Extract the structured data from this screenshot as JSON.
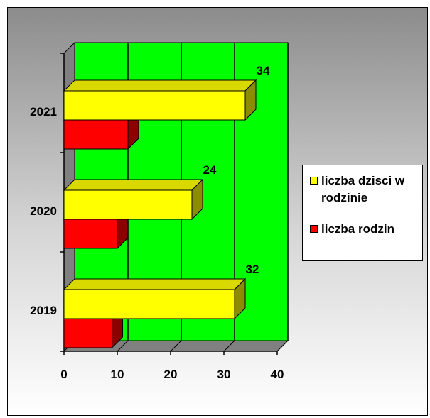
{
  "chart_data": {
    "type": "bar",
    "orientation": "horizontal",
    "categories": [
      "2019",
      "2020",
      "2021"
    ],
    "series": [
      {
        "name": "liczba dzisci w rodzinie",
        "values": [
          32,
          24,
          34
        ],
        "color": "#ffff00"
      },
      {
        "name": "liczba rodzin",
        "values": [
          9,
          10,
          12
        ],
        "color": "#ff0000"
      }
    ],
    "data_labels": [
      "32",
      "24",
      "34"
    ],
    "x_ticks": [
      "0",
      "10",
      "20",
      "30",
      "40"
    ],
    "xlim": [
      0,
      40
    ],
    "grid": true,
    "plot_color": "#00ff00",
    "legend_position": "right"
  }
}
